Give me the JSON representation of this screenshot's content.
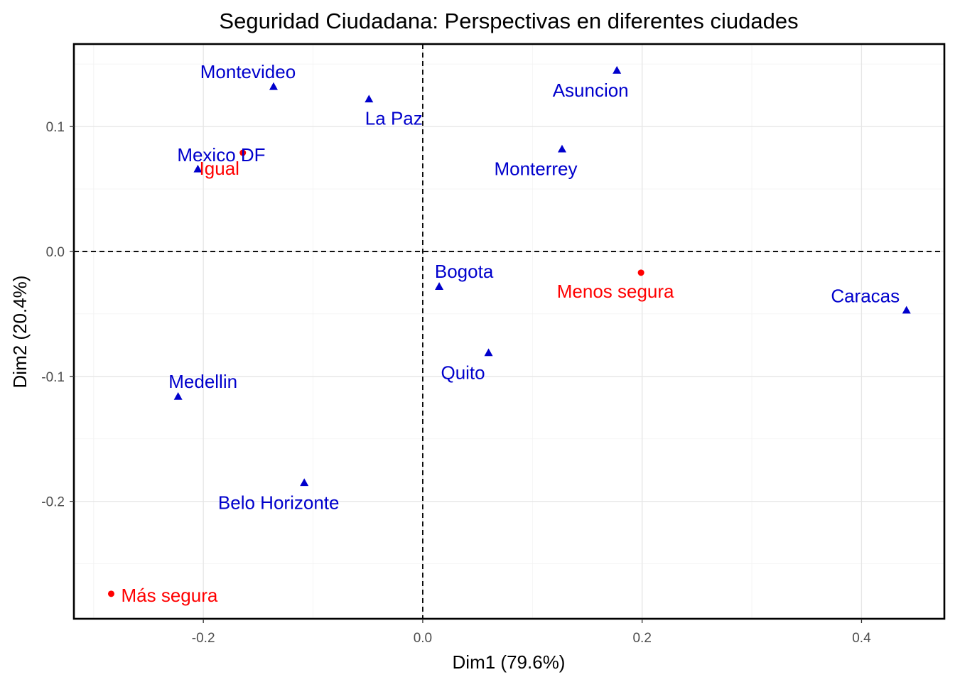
{
  "chart_data": {
    "type": "scatter",
    "title": "Seguridad Ciudadana: Perspectivas en diferentes ciudades",
    "xlabel": "Dim1 (79.6%)",
    "ylabel": "Dim2 (20.4%)",
    "xlim": [
      -0.318,
      0.4755
    ],
    "ylim": [
      -0.294,
      0.166
    ],
    "xticks": [
      -0.2,
      0.0,
      0.2,
      0.4
    ],
    "yticks": [
      -0.2,
      -0.1,
      0.0,
      0.1
    ],
    "xtick_labels": [
      "-0.2",
      "0.0",
      "0.2",
      "0.4"
    ],
    "ytick_labels": [
      "-0.2",
      "-0.1",
      "0.0",
      "0.1"
    ],
    "grid": true,
    "zero_lines": true,
    "series": [
      {
        "role": "rows",
        "color": "#0000CC",
        "marker": "triangle",
        "points": [
          {
            "label": "Montevideo",
            "x": -0.136,
            "y": 0.132
          },
          {
            "label": "La Paz",
            "x": -0.049,
            "y": 0.122
          },
          {
            "label": "Asuncion",
            "x": 0.177,
            "y": 0.145
          },
          {
            "label": "Monterrey",
            "x": 0.127,
            "y": 0.082
          },
          {
            "label": "Mexico DF",
            "x": -0.205,
            "y": 0.066
          },
          {
            "label": "Bogota",
            "x": 0.015,
            "y": -0.028
          },
          {
            "label": "Caracas",
            "x": 0.441,
            "y": -0.047
          },
          {
            "label": "Quito",
            "x": 0.06,
            "y": -0.081
          },
          {
            "label": "Medellin",
            "x": -0.223,
            "y": -0.116
          },
          {
            "label": "Belo Horizonte",
            "x": -0.108,
            "y": -0.185
          }
        ]
      },
      {
        "role": "columns",
        "color": "#FF0000",
        "marker": "circle",
        "points": [
          {
            "label": "Igual",
            "x": -0.164,
            "y": 0.079
          },
          {
            "label": "Menos segura",
            "x": 0.199,
            "y": -0.017
          },
          {
            "label": "Más segura",
            "x": -0.284,
            "y": -0.274
          }
        ]
      }
    ]
  }
}
